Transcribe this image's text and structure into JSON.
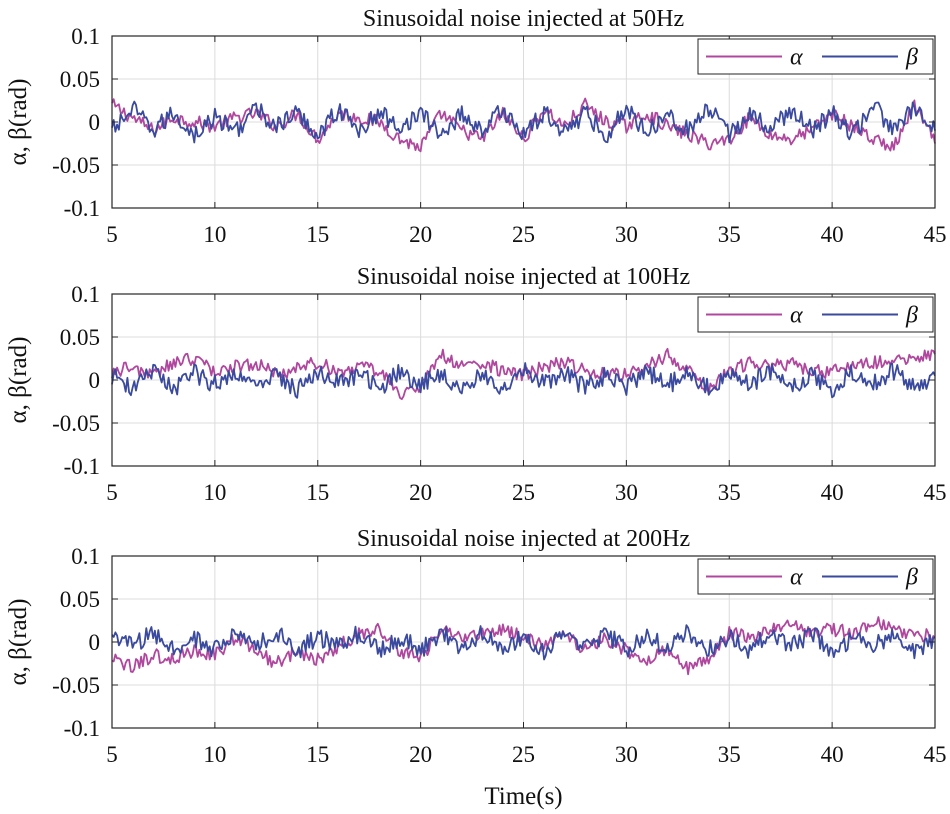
{
  "colors": {
    "alpha": "#b0479e",
    "beta": "#3a4a9e",
    "grid": "#dcdcdc",
    "axis": "#262626"
  },
  "chart_data": [
    {
      "type": "line",
      "title": "Sinusoidal noise injected at 50Hz",
      "xlabel": "",
      "ylabel": "α, β(rad)",
      "xlim": [
        5,
        45
      ],
      "ylim": [
        -0.1,
        0.1
      ],
      "xticks": [
        5,
        10,
        15,
        20,
        25,
        30,
        35,
        40,
        45
      ],
      "xtick_labels": [
        "5",
        "10",
        "15",
        "20",
        "25",
        "30",
        "35",
        "40",
        "45"
      ],
      "yticks": [
        0.1,
        0.05,
        0,
        -0.05,
        -0.1
      ],
      "ytick_labels": [
        "0.1",
        "0.05",
        "0",
        "-0.05",
        "-0.1"
      ],
      "grid": true,
      "legend_position": "top-right",
      "series": [
        {
          "name": "α",
          "color": "#b0479e",
          "x": [
            5,
            6,
            7,
            8,
            9,
            10,
            11,
            12,
            13,
            14,
            15,
            16,
            17,
            18,
            19,
            20,
            21,
            22,
            23,
            24,
            25,
            26,
            27,
            28,
            29,
            30,
            31,
            32,
            33,
            34,
            35,
            36,
            37,
            38,
            39,
            40,
            41,
            42,
            43,
            44,
            45
          ],
          "values": [
            0.02,
            0.005,
            -0.01,
            0.005,
            0,
            -0.005,
            0.005,
            0.01,
            -0.005,
            0.01,
            -0.02,
            0.01,
            0.005,
            0,
            -0.02,
            -0.03,
            0.01,
            -0.01,
            -0.02,
            0.01,
            -0.02,
            0.015,
            -0.005,
            0.02,
            0,
            -0.005,
            0.01,
            -0.005,
            -0.015,
            -0.025,
            -0.02,
            0.005,
            -0.015,
            -0.02,
            -0.01,
            0.01,
            -0.005,
            -0.02,
            -0.03,
            0.02,
            -0.025
          ]
        },
        {
          "name": "β",
          "color": "#3a4a9e",
          "x": [
            5,
            6,
            7,
            8,
            9,
            10,
            11,
            12,
            13,
            14,
            15,
            16,
            17,
            18,
            19,
            20,
            21,
            22,
            23,
            24,
            25,
            26,
            27,
            28,
            29,
            30,
            31,
            32,
            33,
            34,
            35,
            36,
            37,
            38,
            39,
            40,
            41,
            42,
            43,
            44,
            45
          ],
          "values": [
            -0.01,
            0.015,
            -0.01,
            0.01,
            -0.015,
            0.005,
            -0.01,
            0.015,
            -0.005,
            0.01,
            -0.015,
            0.015,
            -0.01,
            0.01,
            -0.005,
            0.01,
            -0.015,
            0.01,
            -0.01,
            0.015,
            -0.015,
            0.01,
            -0.01,
            0.01,
            -0.015,
            0.015,
            -0.01,
            0.01,
            -0.01,
            0.015,
            -0.015,
            0.01,
            -0.01,
            0.015,
            -0.01,
            0.01,
            -0.015,
            0.02,
            -0.01,
            0.015,
            -0.01
          ]
        }
      ]
    },
    {
      "type": "line",
      "title": "Sinusoidal noise injected at 100Hz",
      "xlabel": "",
      "ylabel": "α, β(rad)",
      "xlim": [
        5,
        45
      ],
      "ylim": [
        -0.1,
        0.1
      ],
      "xticks": [
        5,
        10,
        15,
        20,
        25,
        30,
        35,
        40,
        45
      ],
      "xtick_labels": [
        "5",
        "10",
        "15",
        "20",
        "25",
        "30",
        "35",
        "40",
        "45"
      ],
      "yticks": [
        0.1,
        0.05,
        0,
        -0.05,
        -0.1
      ],
      "ytick_labels": [
        "0.1",
        "0.05",
        "0",
        "-0.05",
        "-0.1"
      ],
      "grid": true,
      "legend_position": "top-right",
      "series": [
        {
          "name": "α",
          "color": "#b0479e",
          "x": [
            5,
            6,
            7,
            8,
            9,
            10,
            11,
            12,
            13,
            14,
            15,
            16,
            17,
            18,
            19,
            20,
            21,
            22,
            23,
            24,
            25,
            26,
            27,
            28,
            29,
            30,
            31,
            32,
            33,
            34,
            35,
            36,
            37,
            38,
            39,
            40,
            41,
            42,
            43,
            44,
            45
          ],
          "values": [
            0.01,
            0.015,
            0.005,
            0.02,
            0.025,
            0.01,
            0.015,
            0.02,
            0.005,
            0.015,
            0.02,
            0.01,
            0.015,
            0.01,
            -0.015,
            -0.01,
            0.03,
            0.015,
            0.02,
            0.01,
            0.005,
            0.015,
            0.02,
            0.01,
            0.01,
            0.005,
            0.015,
            0.03,
            0.01,
            -0.01,
            0.01,
            0.02,
            0.015,
            0.02,
            0.01,
            0.01,
            0.015,
            0.02,
            0.02,
            0.025,
            0.03
          ]
        },
        {
          "name": "β",
          "color": "#3a4a9e",
          "x": [
            5,
            6,
            7,
            8,
            9,
            10,
            11,
            12,
            13,
            14,
            15,
            16,
            17,
            18,
            19,
            20,
            21,
            22,
            23,
            24,
            25,
            26,
            27,
            28,
            29,
            30,
            31,
            32,
            33,
            34,
            35,
            36,
            37,
            38,
            39,
            40,
            41,
            42,
            43,
            44,
            45
          ],
          "values": [
            0.005,
            -0.01,
            0.01,
            -0.01,
            0.008,
            -0.005,
            0.01,
            -0.008,
            0.005,
            -0.01,
            0.01,
            -0.005,
            0.008,
            -0.01,
            0.01,
            -0.005,
            0.008,
            -0.01,
            0.005,
            -0.008,
            0.01,
            -0.005,
            0.008,
            -0.01,
            0.005,
            -0.008,
            0.01,
            -0.005,
            0.005,
            -0.01,
            0.008,
            -0.005,
            0.01,
            -0.008,
            0.005,
            -0.01,
            0.008,
            -0.005,
            0.01,
            -0.008,
            0.005
          ]
        }
      ]
    },
    {
      "type": "line",
      "title": "Sinusoidal noise injected at 200Hz",
      "xlabel": "Time(s)",
      "ylabel": "α, β(rad)",
      "xlim": [
        5,
        45
      ],
      "ylim": [
        -0.1,
        0.1
      ],
      "xticks": [
        5,
        10,
        15,
        20,
        25,
        30,
        35,
        40,
        45
      ],
      "xtick_labels": [
        "5",
        "10",
        "15",
        "20",
        "25",
        "30",
        "35",
        "40",
        "45"
      ],
      "yticks": [
        0.1,
        0.05,
        0,
        -0.05,
        -0.1
      ],
      "ytick_labels": [
        "0.1",
        "0.05",
        "0",
        "-0.05",
        "-0.1"
      ],
      "grid": true,
      "legend_position": "top-right",
      "series": [
        {
          "name": "α",
          "color": "#b0479e",
          "x": [
            5,
            6,
            7,
            8,
            9,
            10,
            11,
            12,
            13,
            14,
            15,
            16,
            17,
            18,
            19,
            20,
            21,
            22,
            23,
            24,
            25,
            26,
            27,
            28,
            29,
            30,
            31,
            32,
            33,
            34,
            35,
            36,
            37,
            38,
            39,
            40,
            41,
            42,
            43,
            44,
            45
          ],
          "values": [
            -0.02,
            -0.03,
            -0.015,
            -0.02,
            -0.01,
            -0.015,
            0.005,
            -0.01,
            -0.025,
            -0.01,
            -0.02,
            -0.005,
            0.01,
            0.015,
            -0.01,
            -0.02,
            0.015,
            0.005,
            0.01,
            0.015,
            0.005,
            -0.005,
            0.01,
            -0.01,
            0.005,
            -0.01,
            -0.02,
            -0.01,
            -0.03,
            -0.02,
            0.01,
            0.005,
            0.015,
            0.02,
            0.01,
            0.015,
            0.01,
            0.025,
            0.015,
            0.01,
            0.005
          ]
        },
        {
          "name": "β",
          "color": "#3a4a9e",
          "x": [
            5,
            6,
            7,
            8,
            9,
            10,
            11,
            12,
            13,
            14,
            15,
            16,
            17,
            18,
            19,
            20,
            21,
            22,
            23,
            24,
            25,
            26,
            27,
            28,
            29,
            30,
            31,
            32,
            33,
            34,
            35,
            36,
            37,
            38,
            39,
            40,
            41,
            42,
            43,
            44,
            45
          ],
          "values": [
            0.01,
            -0.005,
            0.01,
            -0.01,
            0.005,
            -0.01,
            0.01,
            -0.005,
            0.01,
            -0.01,
            0.005,
            -0.005,
            0.01,
            -0.01,
            0.005,
            -0.01,
            0.01,
            -0.005,
            0.01,
            -0.01,
            0.005,
            -0.01,
            0.01,
            -0.005,
            0.01,
            -0.01,
            0.005,
            -0.005,
            0.01,
            -0.01,
            0.005,
            -0.01,
            0.01,
            -0.005,
            0.01,
            -0.01,
            0.005,
            -0.005,
            0.01,
            -0.01,
            0.005
          ]
        }
      ]
    }
  ]
}
